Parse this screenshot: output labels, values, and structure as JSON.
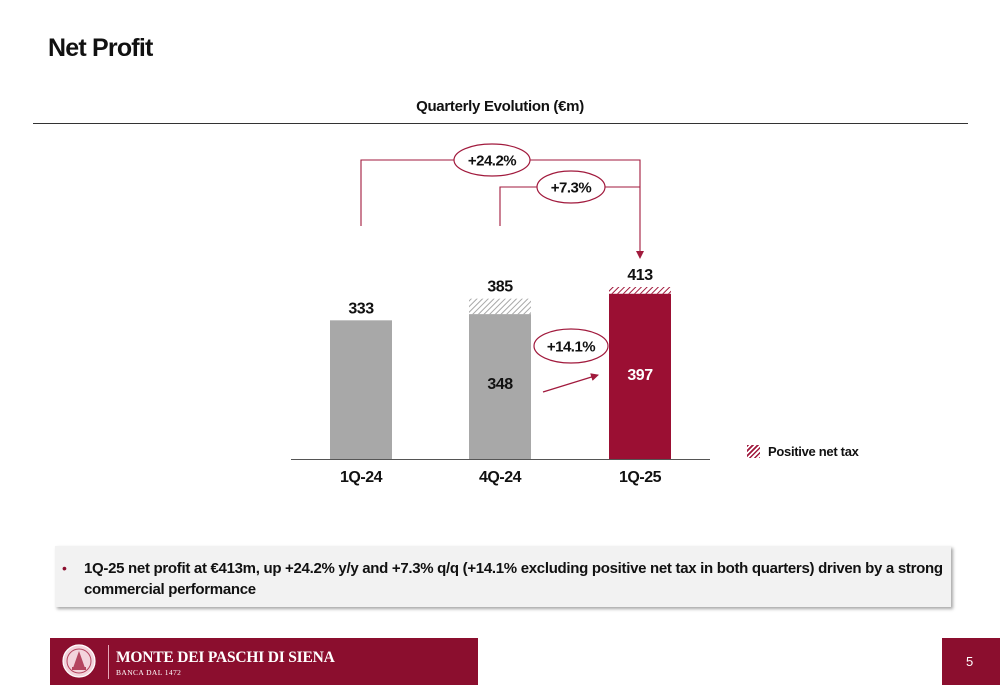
{
  "header": {
    "title": "Net Profit",
    "subtitle": "Quarterly Evolution (€m)"
  },
  "chart_data": {
    "type": "bar",
    "title": "Quarterly Evolution (€m)",
    "categories": [
      "1Q-24",
      "4Q-24",
      "1Q-25"
    ],
    "series": [
      {
        "name": "",
        "values": [
          333,
          348,
          397
        ]
      },
      {
        "name": "Positive net tax",
        "values": [
          0,
          37,
          16
        ]
      }
    ],
    "totals": [
      333,
      385,
      413
    ],
    "inner_labels": [
      "",
      "348",
      "397"
    ],
    "annotations": [
      {
        "label": "+24.2%",
        "from": "1Q-24",
        "to": "1Q-25"
      },
      {
        "label": "+7.3%",
        "from": "4Q-24",
        "to": "1Q-25"
      },
      {
        "label": "+14.1%",
        "from": "4Q-24",
        "to": "1Q-25"
      }
    ],
    "ylim": [
      0,
      413
    ],
    "grid": false,
    "legend_position": "bottom-right",
    "colors": {
      "prior": "#a8a8a8",
      "current": "#9b0f33",
      "prior_hatch": "#a8a8a8",
      "current_hatch": "#a11a3d",
      "annotation": "#a11a3d"
    }
  },
  "legend": {
    "label": "Positive net tax"
  },
  "summary": {
    "text": "1Q-25 net profit at €413m, up +24.2% y/y and +7.3% q/q (+14.1% excluding positive net tax in both quarters) driven by a strong commercial performance"
  },
  "footer": {
    "bank_name": "MONTE DEI PASCHI DI SIENA",
    "bank_sub": "BANCA DAL 1472",
    "page_number": "5",
    "brand_color": "#8b0e2e"
  }
}
